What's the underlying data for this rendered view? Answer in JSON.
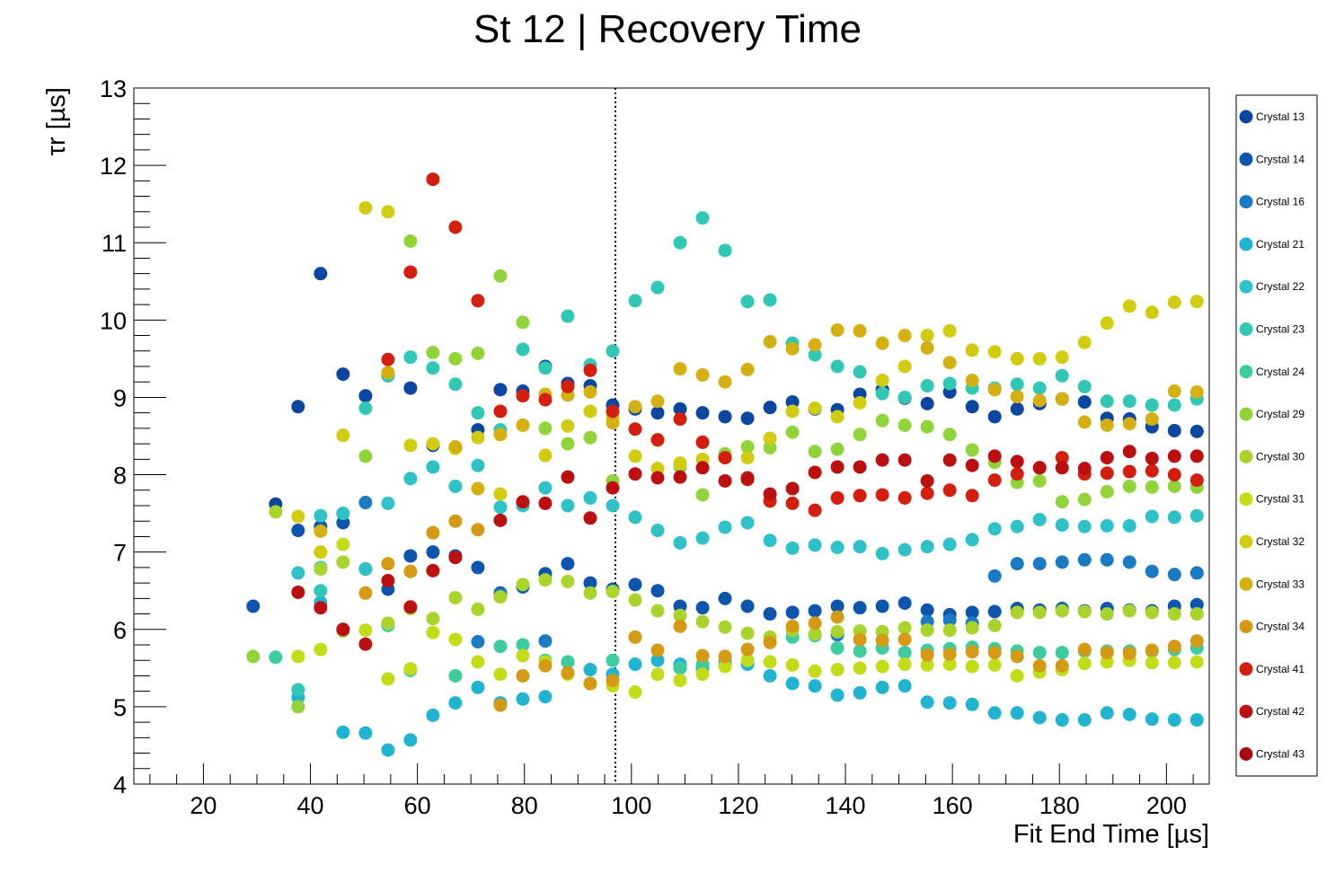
{
  "chart_data": {
    "type": "scatter",
    "title": "St 12 | Recovery Time",
    "xlabel": "Fit End Time [µs]",
    "ylabel": "τr [µs]",
    "xlim": [
      7,
      208
    ],
    "ylim": [
      4,
      13
    ],
    "xticks": [
      20,
      40,
      60,
      80,
      100,
      120,
      140,
      160,
      180,
      200
    ],
    "yticks": [
      4,
      5,
      6,
      7,
      8,
      9,
      10,
      11,
      12,
      13
    ],
    "grid": false,
    "legend_position": "right",
    "reference_line_x": 97,
    "x": [
      29.3,
      33.5,
      37.7,
      41.9,
      46.1,
      50.3,
      54.5,
      58.7,
      62.9,
      67.1,
      71.3,
      75.5,
      79.7,
      83.9,
      88.1,
      92.3,
      96.5,
      100.7,
      104.9,
      109.1,
      113.3,
      117.5,
      121.7,
      125.9,
      130.1,
      134.3,
      138.5,
      142.7,
      146.9,
      151.1,
      155.3,
      159.5,
      163.7,
      167.9,
      172.1,
      176.3,
      180.5,
      184.7,
      188.9,
      193.1,
      197.3,
      201.5,
      205.7
    ],
    "series": [
      {
        "name": "Crystal 13",
        "color": "#0b47a0",
        "values": [
          null,
          7.62,
          8.88,
          10.6,
          9.3,
          9.02,
          9.28,
          9.12,
          8.38,
          8.35,
          8.58,
          9.1,
          9.08,
          9.4,
          9.18,
          9.15,
          8.9,
          8.85,
          8.8,
          8.85,
          8.8,
          8.75,
          8.73,
          8.87,
          8.94,
          8.85,
          8.84,
          9.04,
          9.1,
          8.99,
          8.92,
          9.07,
          8.88,
          8.75,
          8.85,
          8.92,
          8.98,
          8.94,
          8.73,
          8.72,
          8.62,
          8.57,
          8.56
        ]
      },
      {
        "name": "Crystal 14",
        "color": "#0d55ad",
        "values": [
          6.3,
          null,
          7.28,
          7.33,
          7.38,
          6.78,
          6.52,
          6.95,
          7.0,
          6.95,
          6.8,
          6.47,
          6.55,
          6.72,
          6.85,
          6.6,
          6.52,
          6.58,
          6.5,
          6.3,
          6.28,
          6.4,
          6.3,
          6.2,
          6.22,
          6.24,
          6.3,
          6.28,
          6.3,
          6.34,
          6.25,
          6.19,
          6.22,
          6.23,
          6.27,
          6.25,
          6.27,
          6.24,
          6.27,
          6.25,
          6.24,
          6.3,
          6.32
        ]
      },
      {
        "name": "Crystal 16",
        "color": "#1a7ac4",
        "values": [
          null,
          null,
          null,
          null,
          null,
          7.64,
          null,
          null,
          null,
          null,
          5.84,
          6.45,
          null,
          5.85,
          null,
          null,
          null,
          null,
          null,
          null,
          null,
          null,
          null,
          null,
          null,
          null,
          5.93,
          null,
          null,
          null,
          6.1,
          6.12,
          6.08,
          6.69,
          6.85,
          6.85,
          6.87,
          6.9,
          6.9,
          6.87,
          6.75,
          6.71,
          6.73
        ]
      },
      {
        "name": "Crystal 21",
        "color": "#21b4d0",
        "values": [
          null,
          null,
          5.12,
          6.35,
          4.67,
          4.66,
          4.44,
          4.57,
          4.89,
          5.05,
          5.25,
          5.05,
          5.1,
          5.13,
          5.58,
          5.48,
          5.42,
          5.55,
          5.6,
          5.55,
          5.5,
          5.58,
          5.55,
          5.4,
          5.3,
          5.27,
          5.15,
          5.18,
          5.25,
          5.27,
          5.06,
          5.05,
          5.03,
          4.92,
          4.92,
          4.86,
          4.83,
          4.83,
          4.92,
          4.9,
          4.84,
          4.83,
          4.83
        ]
      },
      {
        "name": "Crystal 22",
        "color": "#2ec2c8",
        "values": [
          null,
          null,
          6.73,
          7.47,
          7.5,
          6.78,
          7.63,
          7.95,
          8.1,
          7.85,
          8.12,
          7.58,
          7.6,
          7.83,
          7.6,
          7.7,
          7.6,
          7.45,
          7.28,
          7.12,
          7.18,
          7.32,
          7.38,
          7.15,
          7.05,
          7.09,
          7.06,
          7.07,
          6.98,
          7.03,
          7.07,
          7.1,
          7.16,
          7.3,
          7.33,
          7.42,
          7.35,
          7.33,
          7.34,
          7.34,
          7.46,
          7.45,
          7.47
        ]
      },
      {
        "name": "Crystal 23",
        "color": "#30c8b4",
        "values": [
          null,
          null,
          5.22,
          6.5,
          6.0,
          8.86,
          9.28,
          9.52,
          9.38,
          9.17,
          8.8,
          8.58,
          9.62,
          9.38,
          10.05,
          9.42,
          9.6,
          10.25,
          10.42,
          11.0,
          11.32,
          10.9,
          10.24,
          10.26,
          9.7,
          9.55,
          9.4,
          9.33,
          9.05,
          9.0,
          9.15,
          9.18,
          9.12,
          9.12,
          9.17,
          9.12,
          9.28,
          9.14,
          8.95,
          8.95,
          8.9,
          8.9,
          8.98
        ]
      },
      {
        "name": "Crystal 24",
        "color": "#3ccca0",
        "values": [
          null,
          5.64,
          null,
          6.8,
          null,
          null,
          6.05,
          5.47,
          null,
          5.4,
          null,
          5.78,
          5.8,
          5.6,
          5.58,
          null,
          5.6,
          null,
          null,
          5.5,
          5.55,
          5.55,
          5.6,
          null,
          5.9,
          5.92,
          5.76,
          5.72,
          5.76,
          5.7,
          5.73,
          5.75,
          5.77,
          5.75,
          5.72,
          5.7,
          5.7,
          5.72,
          5.72,
          5.72,
          5.72,
          5.74,
          5.76
        ]
      },
      {
        "name": "Crystal 29",
        "color": "#90d43a",
        "values": [
          5.65,
          null,
          5.0,
          null,
          5.98,
          8.24,
          null,
          11.02,
          9.58,
          9.5,
          9.57,
          10.57,
          9.97,
          8.6,
          8.4,
          8.48,
          7.92,
          null,
          8.45,
          8.1,
          7.74,
          8.27,
          8.36,
          8.35,
          8.55,
          8.3,
          8.33,
          8.52,
          8.7,
          8.64,
          8.62,
          8.52,
          8.32,
          8.16,
          7.9,
          7.92,
          7.65,
          7.68,
          7.78,
          7.85,
          7.84,
          7.85,
          7.84
        ]
      },
      {
        "name": "Crystal 30",
        "color": "#a8d42c",
        "values": [
          null,
          7.52,
          null,
          6.78,
          6.87,
          null,
          6.08,
          6.27,
          6.14,
          6.41,
          6.26,
          6.42,
          6.58,
          6.64,
          6.62,
          6.47,
          6.49,
          6.38,
          6.24,
          6.18,
          6.1,
          6.03,
          5.95,
          5.9,
          5.99,
          5.94,
          5.97,
          5.98,
          5.97,
          6.02,
          5.99,
          5.99,
          6.02,
          6.05,
          6.22,
          6.22,
          6.24,
          6.23,
          6.2,
          6.24,
          6.22,
          6.2,
          6.2
        ]
      },
      {
        "name": "Crystal 31",
        "color": "#c4dc18",
        "values": [
          null,
          null,
          5.65,
          5.74,
          7.1,
          5.99,
          5.36,
          5.49,
          5.96,
          5.87,
          5.58,
          5.42,
          5.66,
          5.58,
          5.42,
          5.3,
          5.27,
          5.19,
          5.42,
          5.34,
          5.42,
          5.52,
          5.6,
          5.58,
          5.54,
          5.46,
          5.48,
          5.5,
          5.52,
          5.55,
          5.54,
          5.55,
          5.52,
          5.54,
          5.4,
          5.45,
          5.48,
          5.56,
          5.58,
          5.6,
          5.57,
          5.57,
          5.58
        ]
      },
      {
        "name": "Crystal 32",
        "color": "#d2cc10",
        "values": [
          null,
          null,
          7.46,
          7.0,
          8.51,
          11.45,
          11.4,
          8.38,
          8.4,
          8.34,
          8.48,
          7.75,
          8.64,
          8.25,
          8.63,
          8.82,
          8.74,
          8.24,
          8.08,
          8.15,
          8.2,
          8.22,
          8.22,
          8.47,
          8.82,
          8.86,
          8.75,
          8.93,
          9.22,
          9.4,
          9.8,
          9.86,
          9.61,
          9.59,
          9.5,
          9.5,
          9.52,
          9.71,
          9.96,
          10.18,
          10.1,
          10.23,
          10.24
        ]
      },
      {
        "name": "Crystal 33",
        "color": "#d4b012",
        "values": [
          null,
          null,
          null,
          7.27,
          null,
          null,
          9.32,
          null,
          null,
          8.36,
          7.82,
          8.52,
          8.64,
          9.04,
          9.03,
          9.07,
          8.67,
          8.88,
          8.95,
          9.37,
          9.29,
          9.2,
          9.36,
          9.72,
          9.63,
          9.68,
          9.87,
          9.86,
          9.7,
          9.8,
          9.64,
          9.45,
          9.22,
          9.1,
          9.01,
          8.96,
          8.98,
          8.68,
          8.64,
          8.66,
          8.72,
          9.08,
          9.07
        ]
      },
      {
        "name": "Crystal 34",
        "color": "#d49a14",
        "values": [
          null,
          null,
          null,
          null,
          null,
          6.47,
          6.85,
          6.75,
          7.25,
          7.4,
          7.29,
          5.02,
          5.4,
          5.53,
          5.44,
          5.3,
          5.34,
          5.9,
          5.73,
          6.04,
          5.66,
          5.65,
          5.74,
          5.83,
          6.04,
          6.08,
          6.16,
          5.87,
          5.86,
          5.87,
          5.67,
          5.68,
          5.71,
          5.7,
          5.65,
          5.53,
          5.53,
          5.74,
          5.7,
          5.69,
          5.73,
          5.78,
          5.85
        ]
      },
      {
        "name": "Crystal 41",
        "color": "#d41e10",
        "values": [
          null,
          null,
          null,
          null,
          null,
          null,
          9.49,
          10.62,
          11.82,
          11.2,
          10.25,
          8.82,
          9.02,
          8.97,
          9.14,
          9.35,
          8.82,
          8.59,
          8.45,
          8.72,
          8.42,
          8.22,
          7.96,
          7.66,
          7.63,
          7.54,
          7.7,
          7.73,
          7.74,
          7.7,
          7.76,
          7.8,
          7.73,
          7.93,
          8.01,
          8.09,
          8.22,
          8.01,
          8.02,
          8.04,
          8.05,
          8.0,
          7.93
        ]
      },
      {
        "name": "Crystal 42",
        "color": "#bc1010",
        "values": [
          null,
          null,
          6.48,
          6.28,
          6.0,
          5.81,
          6.63,
          6.29,
          6.76,
          6.93,
          null,
          7.41,
          7.65,
          7.63,
          7.97,
          7.44,
          7.83,
          8.01,
          7.96,
          7.97,
          8.09,
          7.92,
          7.94,
          7.75,
          7.82,
          8.03,
          8.1,
          8.1,
          8.19,
          8.19,
          7.92,
          8.19,
          8.12,
          8.24,
          8.17,
          8.09,
          8.09,
          8.08,
          8.22,
          8.3,
          8.21,
          8.24,
          8.24
        ]
      },
      {
        "name": "Crystal 43",
        "color": "#a80c0c",
        "values": []
      }
    ]
  }
}
